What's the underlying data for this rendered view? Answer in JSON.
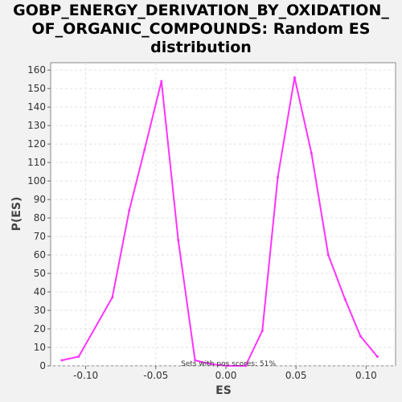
{
  "chart_data": {
    "type": "line",
    "title_lines": [
      "GOBP_ENERGY_DERIVATION_BY_OXIDATION_",
      "OF_ORGANIC_COMPOUNDS: Random ES",
      "distribution"
    ],
    "xlabel": "ES",
    "ylabel": "P(ES)",
    "xlim": [
      -0.125,
      0.121
    ],
    "ylim": [
      0,
      164
    ],
    "x_ticks": [
      -0.1,
      -0.05,
      0.0,
      0.05,
      0.1
    ],
    "x_tick_labels": [
      "-0.10",
      "-0.05",
      "0.00",
      "0.05",
      "0.10"
    ],
    "y_ticks": [
      0,
      10,
      20,
      30,
      40,
      50,
      60,
      70,
      80,
      90,
      100,
      110,
      120,
      130,
      140,
      150,
      160
    ],
    "y_tick_labels": [
      "0",
      "10",
      "20",
      "30",
      "40",
      "50",
      "60",
      "70",
      "80",
      "90",
      "100",
      "110",
      "120",
      "130",
      "140",
      "150",
      "160"
    ],
    "grid": true,
    "series": [
      {
        "name": "Random ES",
        "color": "#ff33ff",
        "x": [
          -0.117,
          -0.105,
          -0.081,
          -0.069,
          -0.058,
          -0.046,
          -0.034,
          -0.022,
          -0.011,
          0.001,
          0.014,
          0.026,
          0.037,
          0.049,
          0.061,
          0.073,
          0.085,
          0.096,
          0.108
        ],
        "y": [
          3,
          5,
          37,
          84,
          117,
          154,
          68,
          3,
          1,
          0,
          0,
          19,
          102,
          156,
          115,
          60,
          36,
          16,
          5
        ]
      }
    ],
    "annotation": "Sets with pos scores: 51%"
  }
}
